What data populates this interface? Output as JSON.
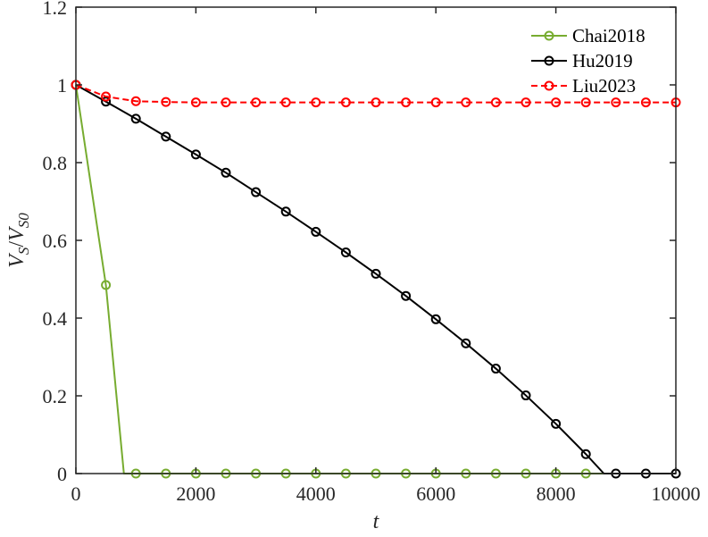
{
  "chart_data": {
    "type": "line",
    "xlabel": "t",
    "ylabel": {
      "main": "V",
      "main_sub": "S",
      "separator": "/",
      "denom": "V",
      "denom_sub": "S0"
    },
    "xlim": [
      0,
      10000
    ],
    "ylim": [
      0,
      1.2
    ],
    "xticks": [
      0,
      2000,
      4000,
      6000,
      8000,
      10000
    ],
    "xtick_labels": [
      "0",
      "2000",
      "4000",
      "6000",
      "8000",
      "10000"
    ],
    "yticks": [
      0,
      0.2,
      0.4,
      0.6,
      0.8,
      1,
      1.2
    ],
    "ytick_labels": [
      "0",
      "0.2",
      "0.4",
      "0.6",
      "0.8",
      "1",
      "1.2"
    ],
    "grid": false,
    "legend_position": "top-right",
    "series": [
      {
        "name": "Chai2018",
        "color": "#77ac30",
        "line_style": "solid",
        "marker": "circle",
        "line": [
          [
            0,
            1.0
          ],
          [
            500,
            0.485
          ],
          [
            800,
            0.0
          ],
          [
            10000,
            0.0
          ]
        ],
        "markers": [
          [
            0,
            1.0
          ],
          [
            500,
            0.485
          ],
          [
            1000,
            0
          ],
          [
            1500,
            0
          ],
          [
            2000,
            0
          ],
          [
            2500,
            0
          ],
          [
            3000,
            0
          ],
          [
            3500,
            0
          ],
          [
            4000,
            0
          ],
          [
            4500,
            0
          ],
          [
            5000,
            0
          ],
          [
            5500,
            0
          ],
          [
            6000,
            0
          ],
          [
            6500,
            0
          ],
          [
            7000,
            0
          ],
          [
            7500,
            0
          ],
          [
            8000,
            0
          ],
          [
            8500,
            0
          ]
        ]
      },
      {
        "name": "Hu2019",
        "color": "#000000",
        "line_style": "solid",
        "marker": "circle",
        "line": [
          [
            0,
            1.0
          ],
          [
            500,
            0.957
          ],
          [
            1000,
            0.913
          ],
          [
            1500,
            0.867
          ],
          [
            2000,
            0.821
          ],
          [
            2500,
            0.774
          ],
          [
            3000,
            0.724
          ],
          [
            3500,
            0.674
          ],
          [
            4000,
            0.622
          ],
          [
            4500,
            0.569
          ],
          [
            5000,
            0.514
          ],
          [
            5500,
            0.457
          ],
          [
            6000,
            0.397
          ],
          [
            6500,
            0.335
          ],
          [
            7000,
            0.27
          ],
          [
            7500,
            0.201
          ],
          [
            8000,
            0.128
          ],
          [
            8500,
            0.05
          ],
          [
            8800,
            0.0
          ],
          [
            10000,
            0.0
          ]
        ],
        "markers": [
          [
            0,
            1.0
          ],
          [
            500,
            0.957
          ],
          [
            1000,
            0.913
          ],
          [
            1500,
            0.867
          ],
          [
            2000,
            0.821
          ],
          [
            2500,
            0.774
          ],
          [
            3000,
            0.724
          ],
          [
            3500,
            0.674
          ],
          [
            4000,
            0.622
          ],
          [
            4500,
            0.569
          ],
          [
            5000,
            0.514
          ],
          [
            5500,
            0.457
          ],
          [
            6000,
            0.397
          ],
          [
            6500,
            0.335
          ],
          [
            7000,
            0.27
          ],
          [
            7500,
            0.201
          ],
          [
            8000,
            0.128
          ],
          [
            8500,
            0.05
          ],
          [
            9000,
            0.0
          ],
          [
            9500,
            0.0
          ],
          [
            10000,
            0.0
          ]
        ]
      },
      {
        "name": "Liu2023",
        "color": "#ff0000",
        "line_style": "dashed",
        "marker": "circle",
        "line": [
          [
            0,
            1.0
          ],
          [
            500,
            0.97
          ],
          [
            1000,
            0.958
          ],
          [
            1500,
            0.956
          ],
          [
            2000,
            0.955
          ],
          [
            2500,
            0.955
          ],
          [
            3000,
            0.955
          ],
          [
            3500,
            0.955
          ],
          [
            4000,
            0.955
          ],
          [
            4500,
            0.955
          ],
          [
            5000,
            0.955
          ],
          [
            5500,
            0.955
          ],
          [
            6000,
            0.955
          ],
          [
            6500,
            0.955
          ],
          [
            7000,
            0.955
          ],
          [
            7500,
            0.955
          ],
          [
            8000,
            0.955
          ],
          [
            8500,
            0.955
          ],
          [
            9000,
            0.955
          ],
          [
            9500,
            0.955
          ],
          [
            10000,
            0.955
          ]
        ],
        "markers": [
          [
            0,
            1.0
          ],
          [
            500,
            0.97
          ],
          [
            1000,
            0.958
          ],
          [
            1500,
            0.956
          ],
          [
            2000,
            0.955
          ],
          [
            2500,
            0.955
          ],
          [
            3000,
            0.955
          ],
          [
            3500,
            0.955
          ],
          [
            4000,
            0.955
          ],
          [
            4500,
            0.955
          ],
          [
            5000,
            0.955
          ],
          [
            5500,
            0.955
          ],
          [
            6000,
            0.955
          ],
          [
            6500,
            0.955
          ],
          [
            7000,
            0.955
          ],
          [
            7500,
            0.955
          ],
          [
            8000,
            0.955
          ],
          [
            8500,
            0.955
          ],
          [
            9000,
            0.955
          ],
          [
            9500,
            0.955
          ],
          [
            10000,
            0.955
          ]
        ]
      }
    ]
  }
}
